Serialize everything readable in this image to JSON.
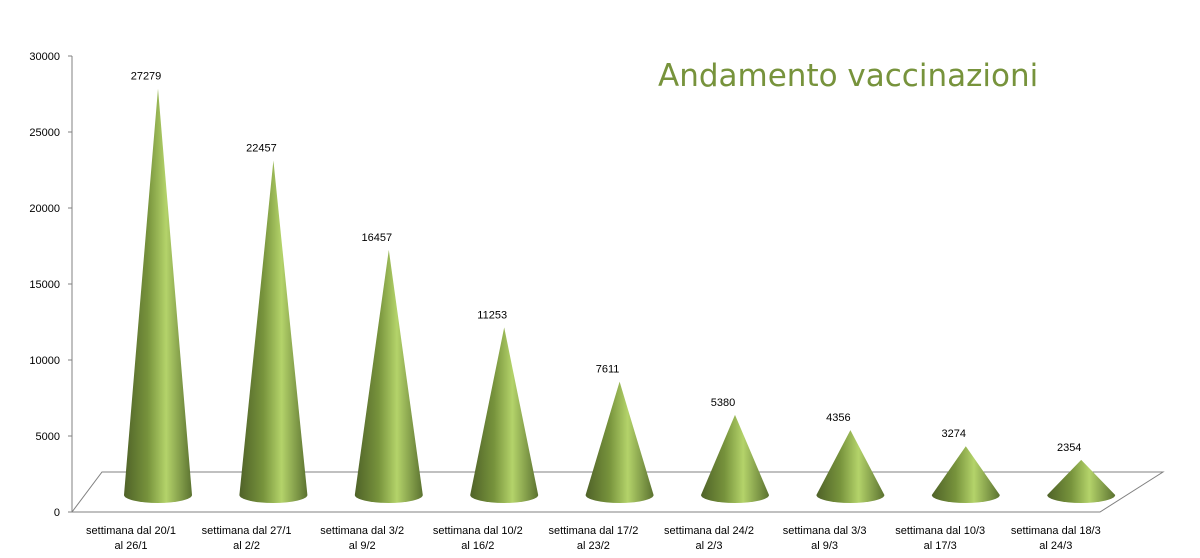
{
  "chart_data": {
    "type": "bar",
    "style": "3d-cone",
    "title": "Andamento vaccinazioni",
    "xlabel": "",
    "ylabel": "",
    "ylim": [
      0,
      30000
    ],
    "yticks": [
      0,
      5000,
      10000,
      15000,
      20000,
      25000,
      30000
    ],
    "categories": [
      [
        "settimana dal 20/1",
        "al 26/1"
      ],
      [
        "settimana dal 27/1",
        "al 2/2"
      ],
      [
        "settimana dal 3/2",
        "al 9/2"
      ],
      [
        "settimana dal 10/2",
        "al 16/2"
      ],
      [
        "settimana dal 17/2",
        "al 23/2"
      ],
      [
        "settimana dal 24/2",
        "al 2/3"
      ],
      [
        "settimana dal 3/3",
        "al 9/3"
      ],
      [
        "settimana dal 10/3",
        "al 17/3"
      ],
      [
        "settimana dal 18/3",
        "al 24/3"
      ]
    ],
    "values": [
      27279,
      22457,
      16457,
      11253,
      7611,
      5380,
      4356,
      3274,
      2354
    ],
    "data_labels": [
      "27279",
      "22457",
      "16457",
      "11253",
      "7611",
      "5380",
      "4356",
      "3274",
      "2354"
    ],
    "grid": false,
    "legend": "none",
    "colors": {
      "bar": "#77933c",
      "bar_light": "#b4d36a",
      "bar_dark": "#4f6228",
      "title": "#77933c",
      "axis": "#808080"
    }
  }
}
